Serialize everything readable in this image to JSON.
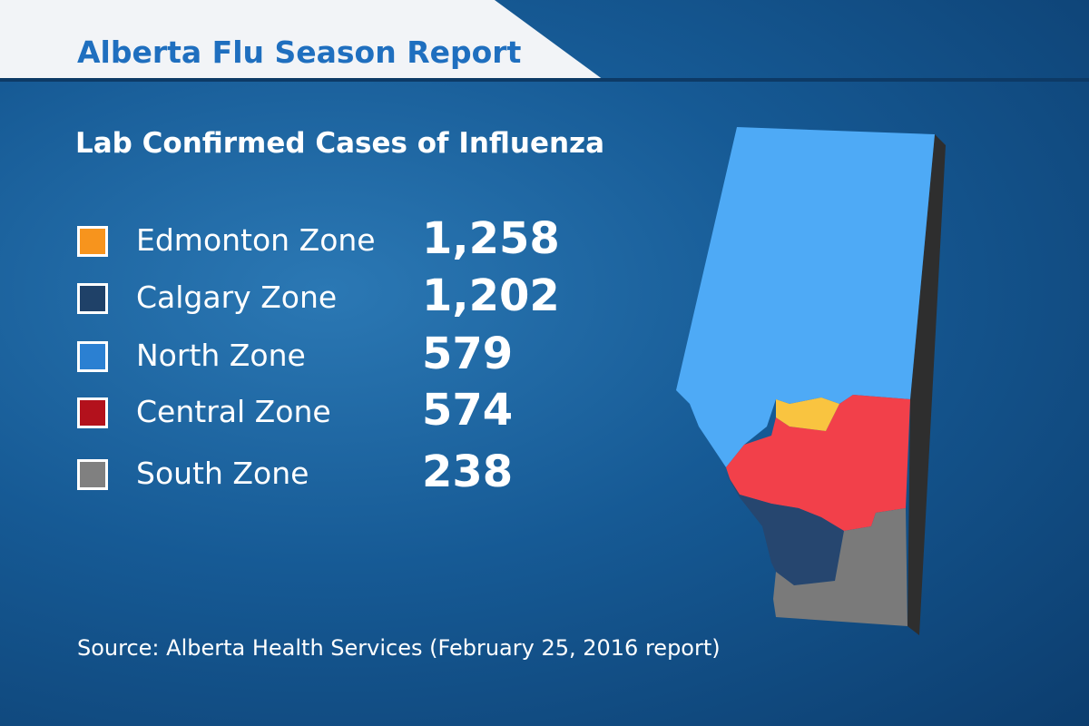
{
  "header": {
    "title": "Alberta Flu Season Report"
  },
  "subtitle": "Lab Confirmed Cases of Influenza",
  "legend": [
    {
      "label": "Edmonton Zone",
      "value": "1,258",
      "color": "#f7941d"
    },
    {
      "label": "Calgary Zone",
      "value": "1,202",
      "color": "#1f4168"
    },
    {
      "label": "North Zone",
      "value": "579",
      "color": "#2b80d2"
    },
    {
      "label": "Central Zone",
      "value": "574",
      "color": "#b3111c"
    },
    {
      "label": "South Zone",
      "value": "238",
      "color": "#808080"
    }
  ],
  "source": "Source: Alberta Health Services (February 25, 2016 report)"
}
